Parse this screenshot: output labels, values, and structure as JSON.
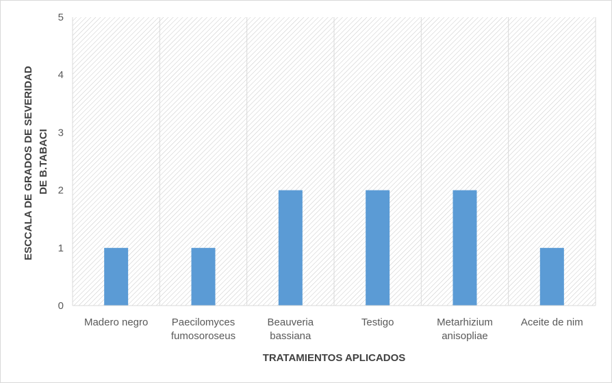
{
  "chart_data": {
    "type": "bar",
    "categories": [
      [
        "Madero negro"
      ],
      [
        "Paecilomyces",
        "fumosoroseus"
      ],
      [
        "Beauveria",
        "bassiana"
      ],
      [
        "Testigo"
      ],
      [
        "Metarhizium",
        "anisopliae"
      ],
      [
        "Aceite de nim"
      ]
    ],
    "values": [
      1,
      1,
      2,
      2,
      2,
      1
    ],
    "xlabel": "TRATAMIENTOS APLICADOS",
    "ylabel": [
      "ESCCALA DE GRADOS DE SEVERIDAD",
      "DE B.TABACI"
    ],
    "ylim": [
      0,
      5
    ],
    "yticks": [
      "0",
      "1",
      "2",
      "3",
      "4",
      "5"
    ],
    "grid": "vertical category separators",
    "plot_background": "diagonal hatch",
    "colors": {
      "bar": "#5b9bd5",
      "grid": "#d9d9d9",
      "hatch": "#c8c8c8"
    }
  }
}
